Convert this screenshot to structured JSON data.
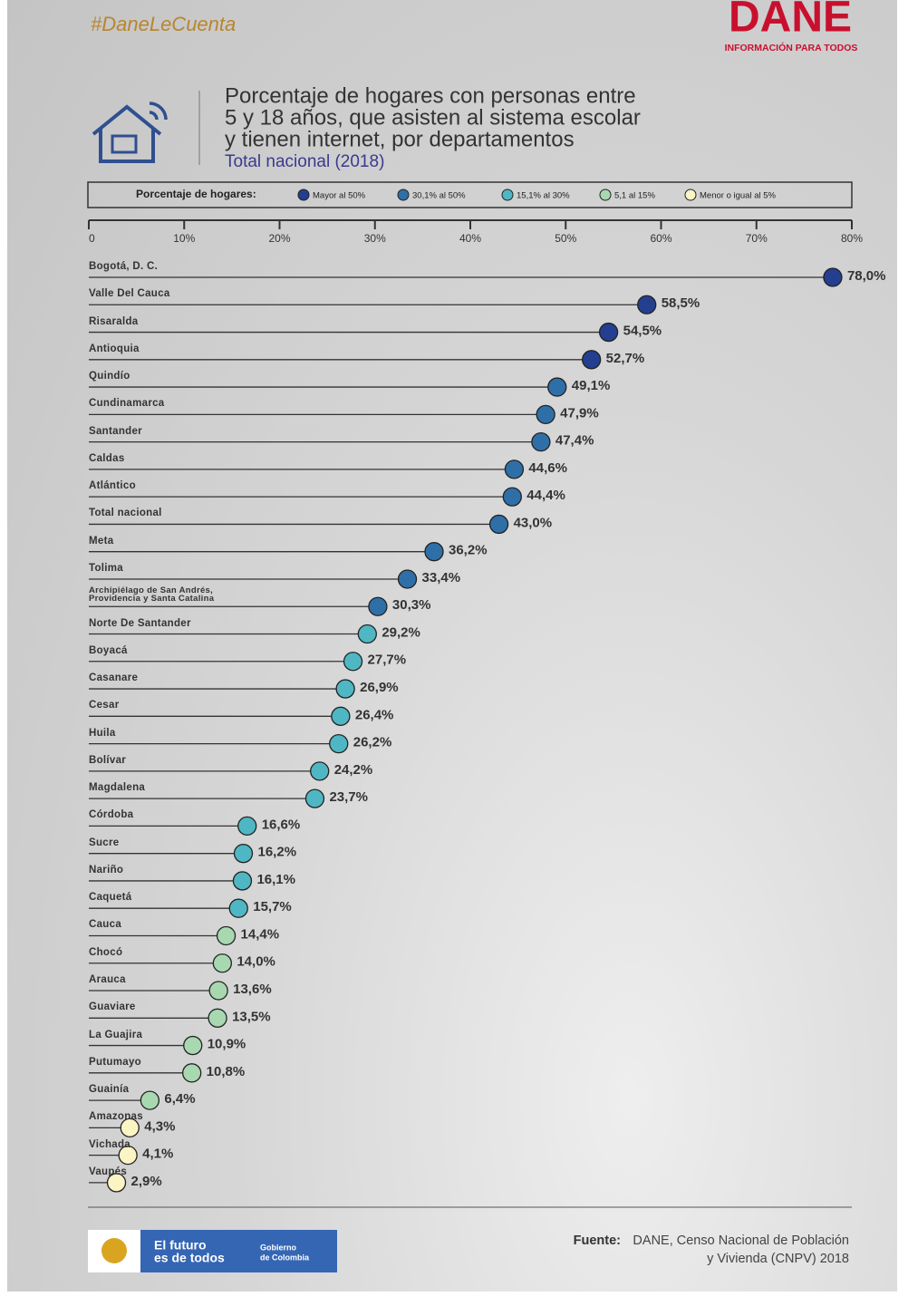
{
  "header": {
    "hashtag": "#DaneLeCuenta",
    "logo": "DANE",
    "logo_tagline": "INFORMACIÓN PARA TODOS"
  },
  "chart_data": {
    "type": "lollipop",
    "title_lines": [
      "Porcentaje de hogares con personas entre",
      "5 y 18 años, que asisten al sistema escolar",
      "y tienen internet, por departamentos"
    ],
    "subtitle": "Total nacional (2018)",
    "legend_title": "Porcentaje de hogares:",
    "legend": [
      {
        "name": "Mayor al 50%",
        "color": "#243f8f"
      },
      {
        "name": "30,1% al 50%",
        "color": "#2f6fa8"
      },
      {
        "name": "15,1% al 30%",
        "color": "#4fb7c3"
      },
      {
        "name": "5,1 al 15%",
        "color": "#a8d8b0"
      },
      {
        "name": "Menor o igual al 5%",
        "color": "#fbf4c4"
      }
    ],
    "categories": [
      "Bogotá, D. C.",
      "Valle Del Cauca",
      "Risaralda",
      "Antioquia",
      "Quindío",
      "Cundinamarca",
      "Santander",
      "Caldas",
      "Atlántico",
      "Total nacional",
      "Meta",
      "Tolima",
      "Archipiélago de San Andrés, Providencia y Santa Catalina",
      "Norte De Santander",
      "Boyacá",
      "Casanare",
      "Cesar",
      "Huila",
      "Bolívar",
      "Magdalena",
      "Córdoba",
      "Sucre",
      "Nariño",
      "Caquetá",
      "Cauca",
      "Chocó",
      "Arauca",
      "Guaviare",
      "La Guajira",
      "Putumayo",
      "Guainía",
      "Amazonas",
      "Vichada",
      "Vaupés"
    ],
    "values": [
      78.0,
      58.5,
      54.5,
      52.7,
      49.1,
      47.9,
      47.4,
      44.6,
      44.4,
      43.0,
      36.2,
      33.4,
      30.3,
      29.2,
      27.7,
      26.9,
      26.4,
      26.2,
      24.2,
      23.7,
      16.6,
      16.2,
      16.1,
      15.7,
      14.4,
      14.0,
      13.6,
      13.5,
      10.9,
      10.8,
      6.4,
      4.3,
      4.1,
      2.9
    ],
    "value_labels": [
      "78,0%",
      "58,5%",
      "54,5%",
      "52,7%",
      "49,1%",
      "47,9%",
      "47,4%",
      "44,6%",
      "44,4%",
      "43,0%",
      "36,2%",
      "33,4%",
      "30,3%",
      "29,2%",
      "27,7%",
      "26,9%",
      "26,4%",
      "26,2%",
      "24,2%",
      "23,7%",
      "16,6%",
      "16,2%",
      "16,1%",
      "15,7%",
      "14,4%",
      "14,0%",
      "13,6%",
      "13,5%",
      "10,9%",
      "10,8%",
      "6,4%",
      "4,3%",
      "4,1%",
      "2,9%"
    ],
    "point_colors": [
      "#243f8f",
      "#243f8f",
      "#243f8f",
      "#243f8f",
      "#2f6fa8",
      "#2f6fa8",
      "#2f6fa8",
      "#2f6fa8",
      "#2f6fa8",
      "#2f6fa8",
      "#2f6fa8",
      "#2f6fa8",
      "#2f6fa8",
      "#4fb7c3",
      "#4fb7c3",
      "#4fb7c3",
      "#4fb7c3",
      "#4fb7c3",
      "#4fb7c3",
      "#4fb7c3",
      "#4fb7c3",
      "#4fb7c3",
      "#4fb7c3",
      "#4fb7c3",
      "#a8d8b0",
      "#a8d8b0",
      "#a8d8b0",
      "#a8d8b0",
      "#a8d8b0",
      "#a8d8b0",
      "#a8d8b0",
      "#fbf4c4",
      "#fbf4c4",
      "#fbf4c4"
    ],
    "xlim": [
      0,
      80
    ],
    "xticks": [
      0,
      {
        "value": 10,
        "label": "10%"
      },
      {
        "value": 20,
        "label": "20%"
      },
      {
        "value": 30,
        "label": "30%"
      },
      {
        "value": 40,
        "label": "40%"
      },
      {
        "value": 50,
        "label": "50%"
      },
      {
        "value": 60,
        "label": "60%"
      },
      {
        "value": 70,
        "label": "70%"
      },
      {
        "value": 80,
        "label": "80%"
      }
    ]
  },
  "footer": {
    "gov_line1": "El futuro",
    "gov_line2": "es de todos",
    "gov_name1": "Gobierno",
    "gov_name2": "de Colombia",
    "source_label": "Fuente:",
    "source_line1": "DANE, Censo Nacional de Población",
    "source_line2": "y Vivienda (CNPV) 2018"
  }
}
